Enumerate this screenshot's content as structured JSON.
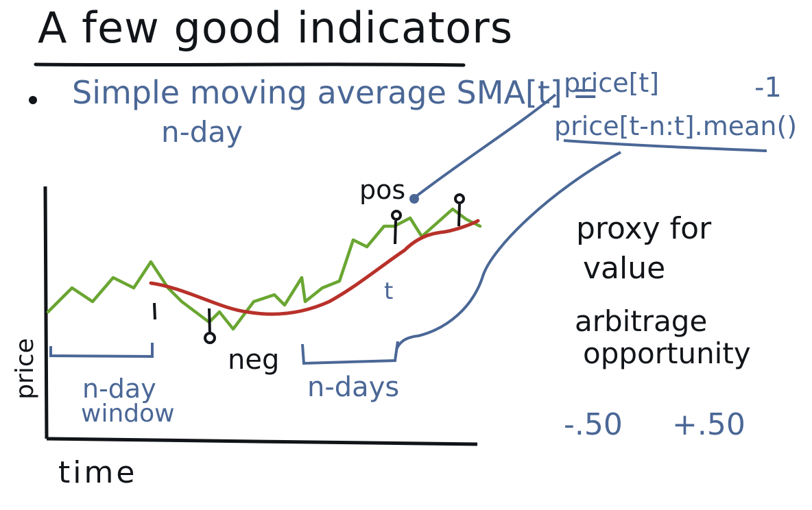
{
  "title": "A few good indicators",
  "sma": {
    "label": "Simple moving average SMA[t] =",
    "sublabel": "n-day",
    "numerator": "price[t]",
    "denominator": "price[t-n:t].mean()",
    "minus_one": "-1"
  },
  "plot": {
    "x_axis_label": "time",
    "y_axis_label": "price",
    "window_label_line1": "n-day",
    "window_label_line2": "window",
    "ndays_label": "n-days",
    "pos_label": "pos",
    "neg_label": "neg",
    "t_label": "t",
    "price_color": "#6aa632",
    "sma_color": "#b8312a",
    "ink_color": "#111418",
    "annotation_color": "#4a6796"
  },
  "notes": {
    "proxy_line1": "proxy for",
    "proxy_line2": "value",
    "arb_line1": "arbitrage",
    "arb_line2": "opportunity",
    "range_low": "-.50",
    "range_high": "+.50"
  }
}
